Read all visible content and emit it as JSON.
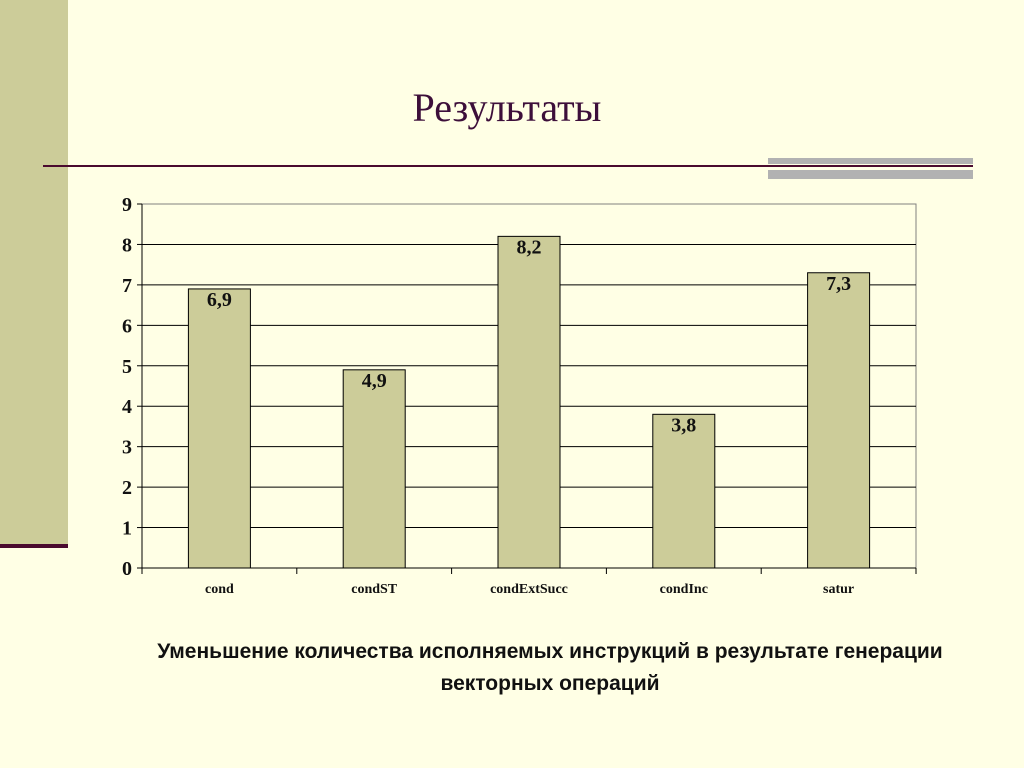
{
  "slide": {
    "title": "Результаты",
    "caption": "Уменьшение количества исполняемых инструкций в результате генерации векторных операций"
  },
  "colors": {
    "background": "#FFFFE5",
    "accent_stripe": "#CCCC99",
    "accent_dark": "#4A0A2E",
    "accent_gray": "#B2B2B2",
    "bar_fill": "#CCCC99",
    "title_color": "#3D0F3A"
  },
  "chart_data": {
    "type": "bar",
    "categories": [
      "cond",
      "condST",
      "condExtSucc",
      "condInc",
      "satur"
    ],
    "values": [
      6.9,
      4.9,
      8.2,
      3.8,
      7.3
    ],
    "data_labels": [
      "6,9",
      "4,9",
      "8,2",
      "3,8",
      "7,3"
    ],
    "y_ticks": [
      "0",
      "1",
      "2",
      "3",
      "4",
      "5",
      "6",
      "7",
      "8",
      "9"
    ],
    "ylim": [
      0,
      9
    ],
    "grid": true,
    "legend": false
  }
}
